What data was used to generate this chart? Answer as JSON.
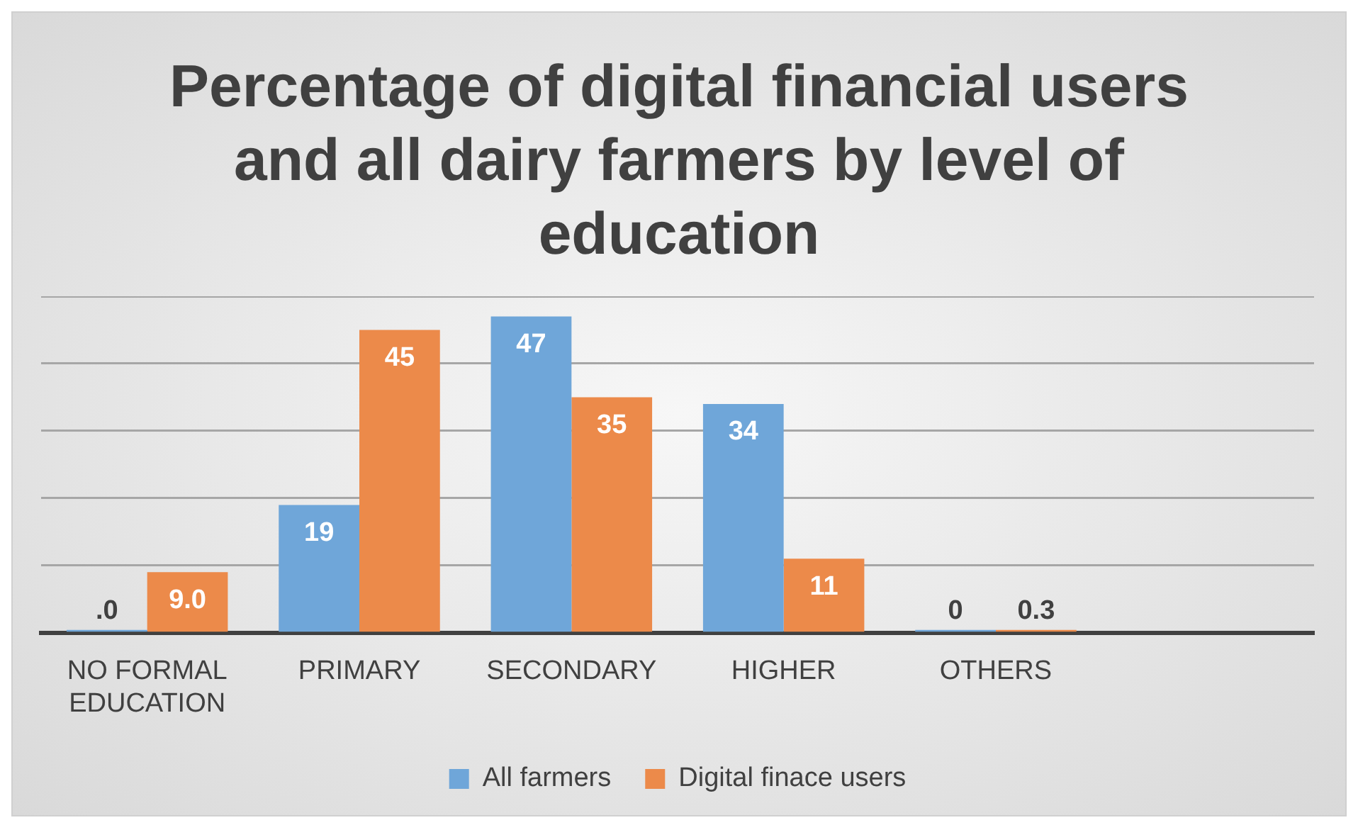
{
  "chart_data": {
    "type": "bar",
    "title": "Percentage of digital financial users and all dairy farmers by level of education",
    "categories": [
      "NO FORMAL EDUCATION",
      "PRIMARY",
      "SECONDARY",
      "HIGHER",
      "OTHERS",
      null
    ],
    "series": [
      {
        "name": "All farmers",
        "color": "#6fa6d9",
        "values": [
          0,
          19,
          47,
          34,
          0,
          null
        ],
        "value_labels": [
          ".0",
          "19",
          "47",
          "34",
          "0",
          null
        ]
      },
      {
        "name": "Digital finace users",
        "color": "#ec8a4a",
        "values": [
          9.0,
          45,
          35,
          11,
          0.3,
          null
        ],
        "value_labels": [
          "9.0",
          "45",
          "35",
          "11",
          "0.3",
          null
        ]
      }
    ],
    "ylim": [
      0,
      50
    ],
    "yticks": [
      {
        "value": 0,
        "label": null
      },
      {
        "value": 10,
        "label": null
      },
      {
        "value": 20,
        "label": null
      },
      {
        "value": 30,
        "label": null
      },
      {
        "value": 40,
        "label": null
      },
      {
        "value": 50,
        "label": null
      }
    ],
    "tick_labels": "x",
    "grid": "y",
    "legend": "bottom"
  }
}
